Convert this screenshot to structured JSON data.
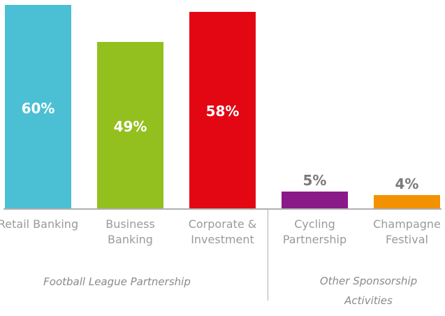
{
  "chart_data": {
    "type": "bar",
    "categories": [
      "Retail Banking",
      "Business Banking",
      "Corporate & Investment",
      "Cycling Partnership",
      "Champagne Festival"
    ],
    "values": [
      60,
      49,
      58,
      5,
      4
    ],
    "value_labels": [
      "60%",
      "49%",
      "58%",
      "5%",
      "4%"
    ],
    "colors": [
      "#4bbfd4",
      "#93c01f",
      "#e30613",
      "#8b1a89",
      "#f39200"
    ],
    "ylim": [
      0,
      60
    ],
    "groups": [
      "Football League Partnership",
      "Other Sponsorship Activities"
    ]
  }
}
